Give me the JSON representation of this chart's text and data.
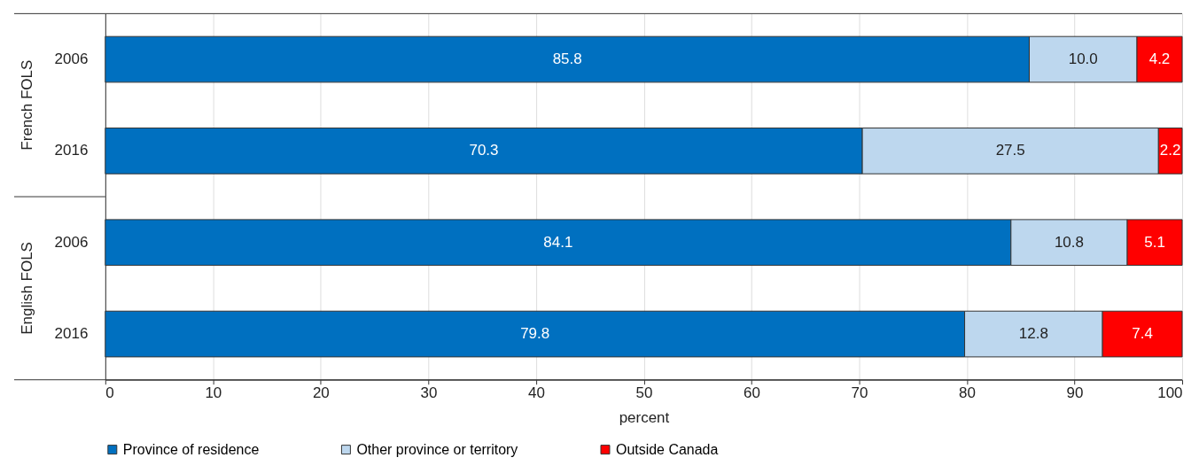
{
  "chart_data": {
    "type": "bar",
    "orientation": "horizontal",
    "stacked": true,
    "grid": "x",
    "legend": "bottom",
    "categories": [
      "2006",
      "2016",
      "2006",
      "2016"
    ],
    "annotations": [
      "French FOLS",
      "English FOLS"
    ],
    "xlabel": "percent",
    "xlim": [
      0,
      100
    ],
    "xticks": [
      0,
      10,
      20,
      30,
      40,
      50,
      60,
      70,
      80,
      90,
      100
    ],
    "series": [
      {
        "name": "Province of residence",
        "color": "#0070c0",
        "values": [
          85.8,
          70.3,
          84.1,
          79.8
        ],
        "value_labels": [
          "85.8",
          "70.3",
          "84.1",
          "79.8"
        ]
      },
      {
        "name": "Other province or territory",
        "color": "#bdd7ee",
        "values": [
          10.0,
          27.5,
          10.8,
          12.8
        ],
        "value_labels": [
          "10.0",
          "27.5",
          "10.8",
          "12.8"
        ]
      },
      {
        "name": "Outside Canada",
        "color": "#ff0000",
        "values": [
          4.2,
          2.2,
          5.1,
          7.4
        ],
        "value_labels": [
          "4.2",
          "2.2",
          "5.1",
          "7.4"
        ]
      }
    ]
  }
}
